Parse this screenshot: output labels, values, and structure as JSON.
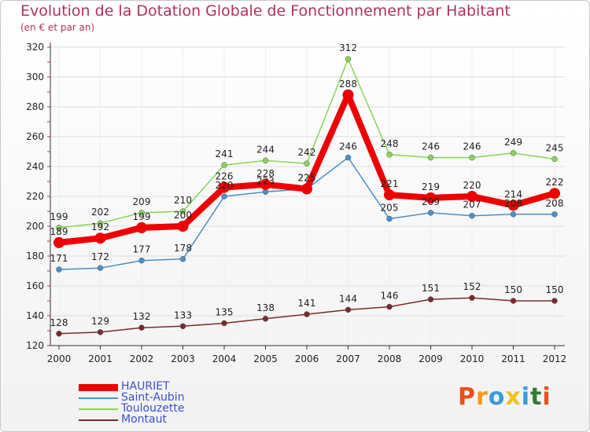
{
  "title": "Evolution de la Dotation Globale de Fonctionnement par Habitant",
  "subtitle": "(en € et par an)",
  "logo": {
    "text": "Proxiti",
    "colors": [
      "#e8501c",
      "#f29b1b",
      "#3b9ad9",
      "#f2c21b",
      "#3b9ad9",
      "#2e7d32",
      "#e8501c"
    ]
  },
  "chart_data": {
    "type": "line",
    "x": [
      "2000",
      "2001",
      "2002",
      "2003",
      "2004",
      "2005",
      "2006",
      "2007",
      "2008",
      "2009",
      "2010",
      "2011",
      "2012"
    ],
    "ylim": [
      120,
      320
    ],
    "yticks": [
      120,
      140,
      160,
      180,
      200,
      220,
      240,
      260,
      280,
      300,
      320
    ],
    "grid": true,
    "legend_position": "bottom-left",
    "series": [
      {
        "name": "HAURIET",
        "color": "#ee0000",
        "values": [
          189,
          192,
          199,
          200,
          226,
          228,
          225,
          288,
          221,
          219,
          220,
          214,
          222
        ]
      },
      {
        "name": "Saint-Aubin",
        "color": "#4a90c8",
        "values": [
          171,
          172,
          177,
          178,
          220,
          223,
          225,
          246,
          205,
          209,
          207,
          208,
          208
        ]
      },
      {
        "name": "Toulouzette",
        "color": "#88d45a",
        "values": [
          199,
          202,
          209,
          210,
          241,
          244,
          242,
          312,
          248,
          246,
          246,
          249,
          245
        ]
      },
      {
        "name": "Montaut",
        "color": "#7a2a2a",
        "values": [
          128,
          129,
          132,
          133,
          135,
          138,
          141,
          144,
          146,
          151,
          152,
          150,
          150
        ]
      }
    ]
  }
}
